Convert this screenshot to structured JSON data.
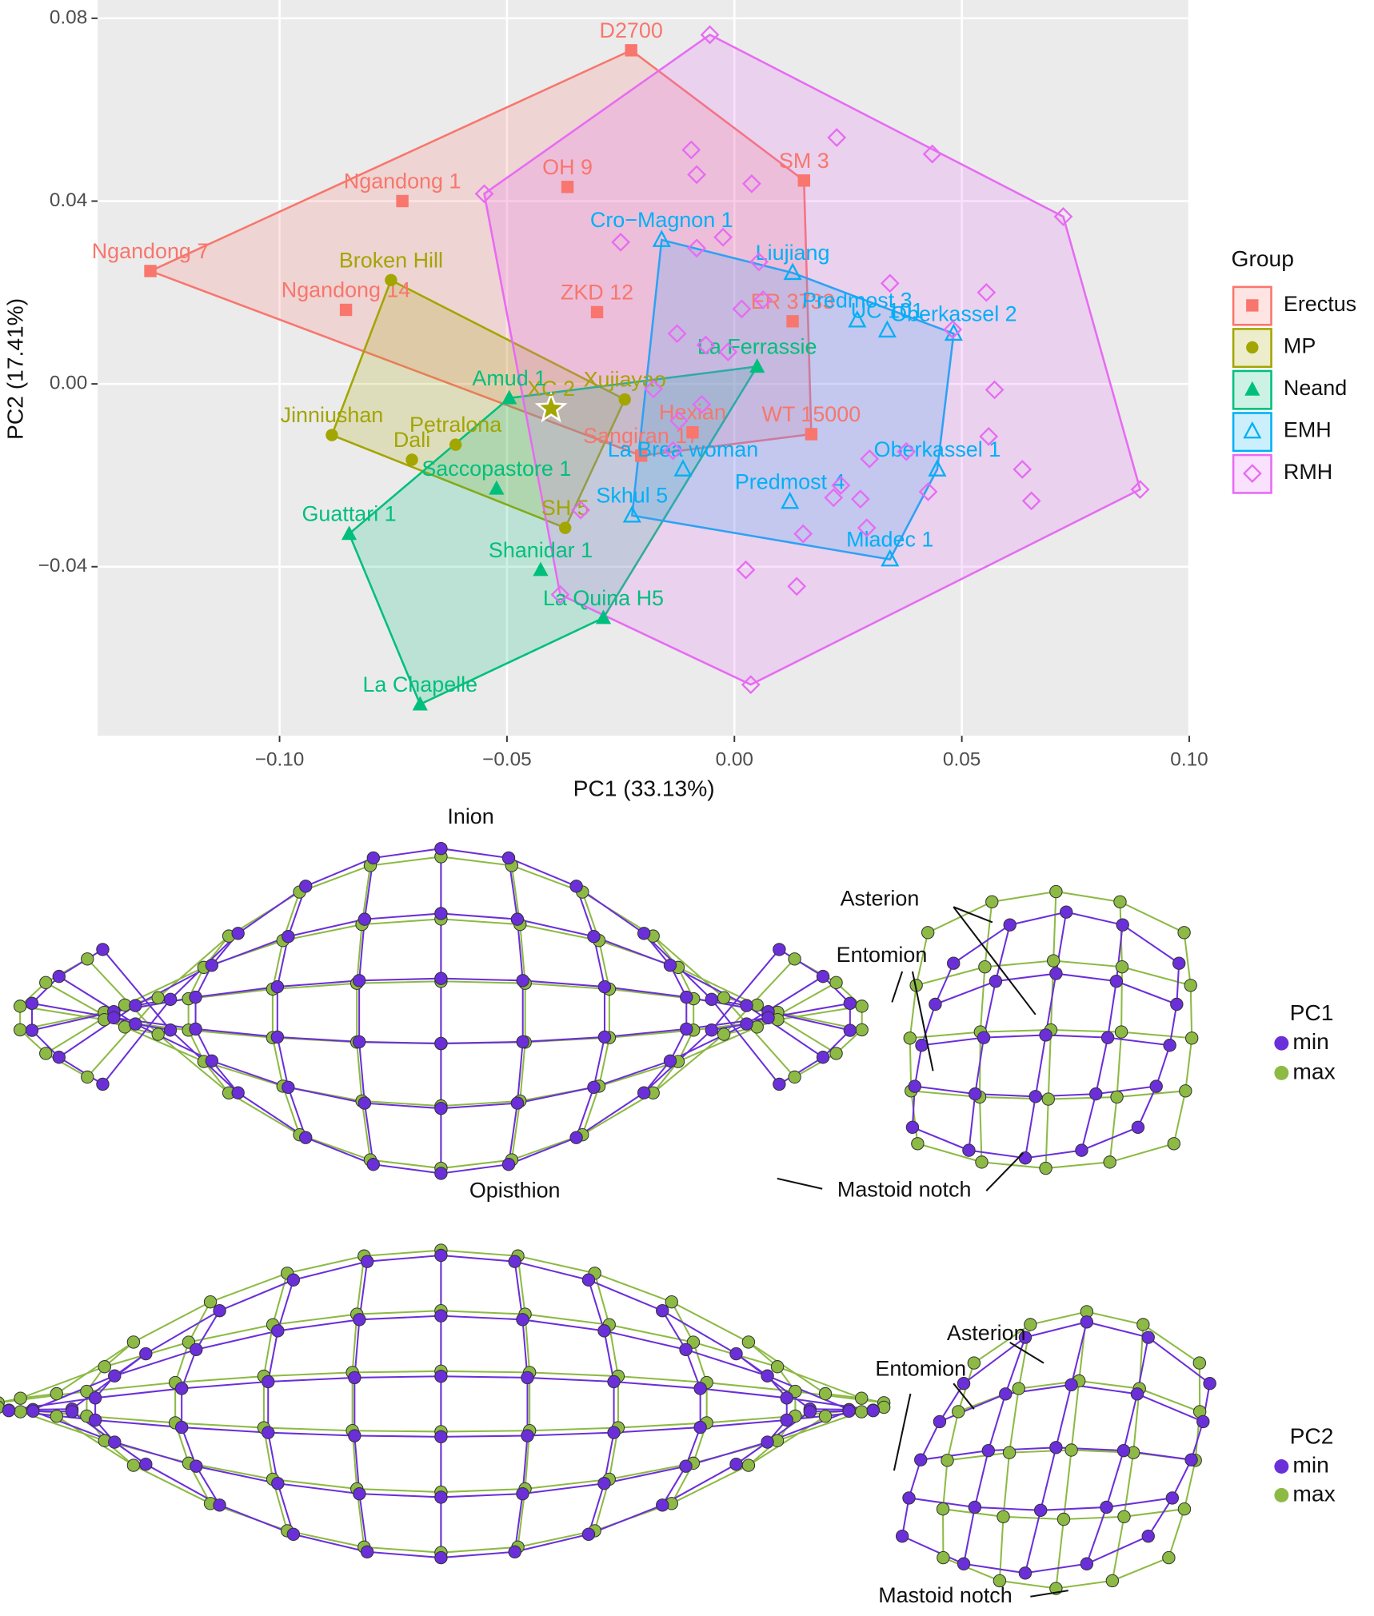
{
  "chart_data": {
    "type": "scatter",
    "xlabel": "PC1 (33.13%)",
    "ylabel": "PC2 (17.41%)",
    "legend_title": "Group",
    "legend": "right",
    "grid": true,
    "xlim": [
      -0.14,
      0.1
    ],
    "ylim": [
      -0.077,
      0.084
    ],
    "xticks": [
      {
        "value": -0.1,
        "label": "−0.10"
      },
      {
        "value": -0.05,
        "label": "−0.05"
      },
      {
        "value": 0,
        "label": "0.00"
      },
      {
        "value": 0.05,
        "label": "0.05"
      },
      {
        "value": 0.1,
        "label": "0.10"
      }
    ],
    "yticks": [
      {
        "value": -0.04,
        "label": "−0.04"
      },
      {
        "value": 0,
        "label": "0.00"
      },
      {
        "value": 0.04,
        "label": "0.04"
      },
      {
        "value": 0.08,
        "label": "0.08"
      }
    ],
    "series": [
      {
        "name": "Erectus",
        "color": "#F8766D",
        "marker": "square",
        "filled": true,
        "labels": [
          "D2700",
          "OH 9",
          "Ngandong 1",
          "SM 3",
          "Ngandong 7",
          "Ngandong 14",
          "ZKD 12",
          "ER 3733",
          "Hexian",
          "WT 15000",
          "Sangiran 17"
        ],
        "x": [
          -0.0227,
          -0.0367,
          -0.073,
          0.0153,
          -0.1284,
          -0.0854,
          -0.0302,
          0.0128,
          -0.0092,
          0.0169,
          -0.0205
        ],
        "values": [
          0.073,
          0.0431,
          0.04,
          0.0445,
          0.0247,
          0.0162,
          0.0157,
          0.0137,
          -0.0106,
          -0.011,
          -0.0157
        ]
      },
      {
        "name": "MP",
        "color": "#A3A500",
        "marker": "circle",
        "filled": true,
        "labels": [
          "Broken Hill",
          "Jinniushan",
          "Dali",
          "Petralona",
          "Xujiayao",
          "SH 5",
          "XC 2"
        ],
        "markers": [
          "circle",
          "circle",
          "circle",
          "circle",
          "circle",
          "circle",
          "star"
        ],
        "x": [
          -0.0755,
          -0.0885,
          -0.0709,
          -0.0613,
          -0.0241,
          -0.0372,
          -0.0403
        ],
        "values": [
          0.0227,
          -0.0112,
          -0.0166,
          -0.0133,
          -0.0034,
          -0.0315,
          -0.0054
        ]
      },
      {
        "name": "Neand",
        "color": "#00BF7D",
        "marker": "triangle",
        "filled": true,
        "labels": [
          "Amud 1",
          "La Ferrassie",
          "Saccopastore 1",
          "Guattari 1",
          "Shanidar 1",
          "La Quina H5",
          "La Chapelle"
        ],
        "x": [
          -0.0495,
          0.005,
          -0.0523,
          -0.0847,
          -0.0426,
          -0.0288,
          -0.0691
        ],
        "values": [
          -0.0031,
          0.0038,
          -0.0229,
          -0.0328,
          -0.0407,
          -0.0512,
          -0.0701
        ]
      },
      {
        "name": "EMH",
        "color": "#00B0F6",
        "marker": "triangle",
        "filled": false,
        "labels": [
          "Cro−Magnon 1",
          "Liujiang",
          "Predmost 3",
          "UC 101",
          "Oberkassel 2",
          "Oberkassel 1",
          "La Brea woman",
          "Predmost 4",
          "Skhul 5",
          "Mladec 1"
        ],
        "x": [
          -0.016,
          0.0128,
          0.027,
          0.0336,
          0.0482,
          0.0446,
          -0.0113,
          0.0122,
          -0.0225,
          0.0342
        ],
        "values": [
          0.0315,
          0.0243,
          0.0139,
          0.0117,
          0.011,
          -0.0187,
          -0.0187,
          -0.0258,
          -0.0288,
          -0.0384
        ]
      },
      {
        "name": "RMH",
        "color": "#E76BF3",
        "marker": "diamond",
        "filled": false,
        "x": [
          -0.0054,
          -0.055,
          0.0723,
          0.0892,
          0.0435,
          0.0225,
          -0.0095,
          -0.0083,
          0.0038,
          -0.025,
          -0.0083,
          -0.0025,
          0.0054,
          0.0342,
          0.0554,
          0.0063,
          0.0016,
          0.048,
          -0.0126,
          -0.0063,
          -0.0014,
          0.0572,
          -0.0178,
          -0.0072,
          0.0559,
          0.0633,
          0.0653,
          0.0378,
          0.0297,
          0.0426,
          0.0234,
          0.0277,
          0.0218,
          0.0151,
          0.0291,
          -0.0338,
          0.0025,
          0.0137,
          -0.0383,
          0.0036,
          -0.0135,
          -0.0122
        ],
        "values": [
          0.0764,
          0.0416,
          0.0366,
          -0.0231,
          0.0503,
          0.0539,
          0.0512,
          0.0458,
          0.0438,
          0.031,
          0.0297,
          0.0321,
          0.0267,
          0.022,
          0.02,
          0.0184,
          0.0164,
          0.0119,
          0.011,
          0.0085,
          0.007,
          -0.0013,
          -0.0011,
          -0.0045,
          -0.0115,
          -0.0187,
          -0.0256,
          -0.0148,
          -0.0164,
          -0.0236,
          -0.0222,
          -0.0252,
          -0.0249,
          -0.0328,
          -0.0315,
          -0.0276,
          -0.0407,
          -0.0443,
          -0.0461,
          -0.0658,
          -0.0146,
          -0.0081
        ]
      }
    ]
  },
  "diagrams": [
    {
      "legend_title": "PC1",
      "legend_items": [
        "min",
        "max"
      ],
      "annotations": [
        "Inion",
        "Opisthion",
        "Asterion",
        "Entomion",
        "Mastoid notch"
      ]
    },
    {
      "legend_title": "PC2",
      "legend_items": [
        "min",
        "max"
      ],
      "annotations": [
        "Asterion",
        "Entomion",
        "Mastoid notch"
      ]
    }
  ]
}
